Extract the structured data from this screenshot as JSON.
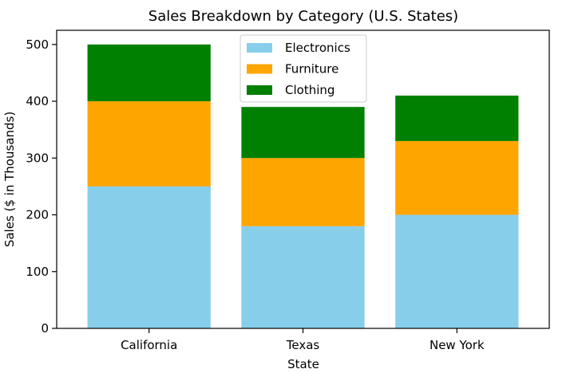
{
  "chart_data": {
    "type": "bar",
    "stacked": true,
    "title": "Sales Breakdown by Category (U.S. States)",
    "xlabel": "State",
    "ylabel": "Sales ($ in Thousands)",
    "categories": [
      "California",
      "Texas",
      "New York"
    ],
    "ylim": [
      0,
      525
    ],
    "yticks": [
      0,
      100,
      200,
      300,
      400,
      500
    ],
    "grid": false,
    "legend_position": "top-center",
    "series": [
      {
        "name": "Electronics",
        "values": [
          250,
          180,
          200
        ],
        "color": "#87ceeb"
      },
      {
        "name": "Furniture",
        "values": [
          150,
          120,
          130
        ],
        "color": "#ffa500"
      },
      {
        "name": "Clothing",
        "values": [
          100,
          90,
          80
        ],
        "color": "#008000"
      }
    ]
  }
}
